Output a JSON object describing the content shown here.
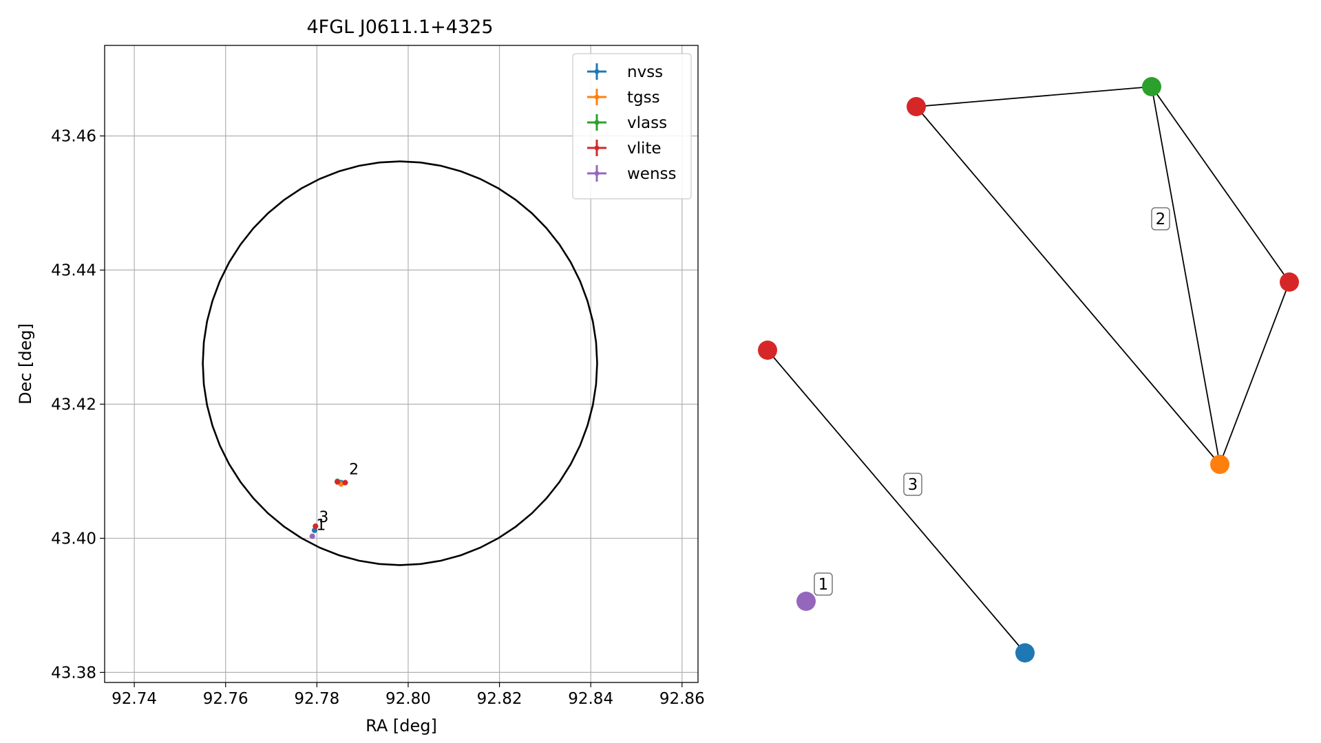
{
  "chart_data": [
    {
      "type": "scatter",
      "title": "4FGL J0611.1+4325",
      "xlabel": "RA [deg]",
      "ylabel": "Dec [deg]",
      "xlim": [
        92.7335,
        92.8635
      ],
      "ylim": [
        43.3785,
        43.4735
      ],
      "xticks": [
        92.74,
        92.76,
        92.78,
        92.8,
        92.82,
        92.84,
        92.86
      ],
      "xtick_labels": [
        "92.74",
        "92.76",
        "92.78",
        "92.80",
        "92.82",
        "92.84",
        "92.86"
      ],
      "yticks": [
        43.38,
        43.4,
        43.42,
        43.44,
        43.46
      ],
      "ytick_labels": [
        "43.38",
        "43.40",
        "43.42",
        "43.44",
        "43.46"
      ],
      "grid": true,
      "legend_position": "top-right",
      "circle": {
        "center": [
          92.7982,
          43.4261
        ],
        "radius_ra": 0.0432,
        "radius_dec": 0.0301
      },
      "series": [
        {
          "name": "nvss",
          "color": "#1f77b4",
          "points": [
            [
              92.7795,
              43.4012
            ],
            [
              92.7853,
              43.4083
            ]
          ]
        },
        {
          "name": "tgss",
          "color": "#ff7f0e",
          "points": [
            [
              92.7853,
              43.4081
            ]
          ]
        },
        {
          "name": "vlass",
          "color": "#2ca02c",
          "points": [
            [
              92.7845,
              43.4085
            ]
          ]
        },
        {
          "name": "vlite",
          "color": "#d62728",
          "points": [
            [
              92.7797,
              43.4018
            ],
            [
              92.7845,
              43.4084
            ],
            [
              92.7862,
              43.4083
            ]
          ]
        },
        {
          "name": "wenss",
          "color": "#9467bd",
          "points": [
            [
              92.779,
              43.4003
            ]
          ]
        }
      ],
      "annotations": [
        {
          "text": "1",
          "at": [
            92.7791,
            43.4004
          ]
        },
        {
          "text": "2",
          "at": [
            92.7854,
            43.4085
          ]
        },
        {
          "text": "3",
          "at": [
            92.7797,
            43.4018
          ]
        }
      ]
    },
    {
      "type": "graph",
      "nodes": [
        {
          "id": "vlite-a",
          "survey": "vlite",
          "color": "#d62728"
        },
        {
          "id": "vlass-a",
          "survey": "vlass",
          "color": "#2ca02c"
        },
        {
          "id": "vlite-b",
          "survey": "vlite",
          "color": "#d62728"
        },
        {
          "id": "tgss-a",
          "survey": "tgss",
          "color": "#ff7f0e"
        },
        {
          "id": "vlite-c",
          "survey": "vlite",
          "color": "#d62728"
        },
        {
          "id": "nvss-a",
          "survey": "nvss",
          "color": "#1f77b4"
        },
        {
          "id": "wenss-a",
          "survey": "wenss",
          "color": "#9467bd"
        }
      ],
      "edges": [
        [
          "vlite-a",
          "vlass-a"
        ],
        [
          "vlass-a",
          "vlite-b"
        ],
        [
          "vlass-a",
          "tgss-a"
        ],
        [
          "vlite-a",
          "tgss-a"
        ],
        [
          "vlite-b",
          "tgss-a"
        ],
        [
          "vlite-c",
          "nvss-a"
        ]
      ],
      "labels": [
        {
          "text": "1",
          "group": [
            "wenss-a"
          ]
        },
        {
          "text": "2",
          "group": [
            "vlite-a",
            "vlass-a",
            "vlite-b",
            "tgss-a"
          ]
        },
        {
          "text": "3",
          "group": [
            "vlite-c",
            "nvss-a"
          ]
        }
      ]
    }
  ]
}
